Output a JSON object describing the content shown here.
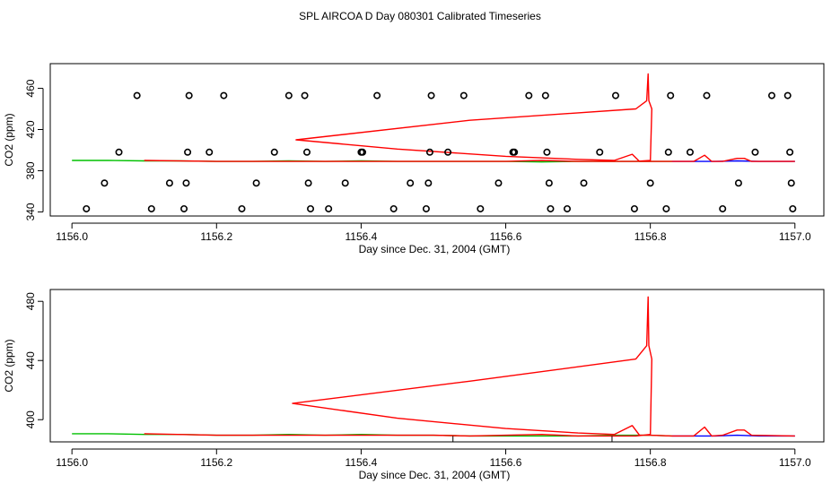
{
  "figure": {
    "title": "SPL AIRCOA D  Day 080301  Calibrated Timeseries"
  },
  "chart_data": [
    {
      "type": "line",
      "panel": "top",
      "xlabel": "Day since Dec. 31, 2004 (GMT)",
      "ylabel": "CO2 (ppm)",
      "xlim": [
        1155.97,
        1157.04
      ],
      "ylim": [
        336,
        484
      ],
      "xticks": [
        1156.0,
        1156.2,
        1156.4,
        1156.6,
        1156.8,
        1157.0
      ],
      "xtick_labels": [
        "1156.0",
        "1156.2",
        "1156.4",
        "1156.6",
        "1156.8",
        "1157.0"
      ],
      "yticks": [
        340,
        380,
        420,
        460
      ],
      "ytick_labels": [
        "340",
        "380",
        "420",
        "460"
      ],
      "series": [
        {
          "color": "#00c000",
          "x": [
            1156.0,
            1156.05,
            1156.1,
            1156.15,
            1156.2,
            1156.25,
            1156.3,
            1156.35,
            1156.4,
            1156.45,
            1156.5,
            1156.55,
            1156.6,
            1156.65,
            1156.7,
            1156.75,
            1156.8,
            1156.83
          ],
          "y": [
            390,
            390,
            389.5,
            389.5,
            389,
            389,
            389.5,
            389,
            389.5,
            389,
            389,
            389,
            389,
            388.5,
            389,
            389,
            389,
            389
          ]
        },
        {
          "color": "#0000ff",
          "x": [
            1156.83,
            1156.86,
            1156.89,
            1156.92,
            1156.95,
            1156.98,
            1157.0
          ],
          "y": [
            389,
            389,
            389,
            389.5,
            389,
            389,
            389
          ]
        },
        {
          "color": "#ff0000",
          "x": [
            1156.1,
            1156.2,
            1156.3,
            1156.4,
            1156.5,
            1156.55,
            1156.6,
            1156.65,
            1156.7,
            1156.76,
            1156.78,
            1156.8,
            1156.802,
            1156.798,
            1156.797,
            1156.795,
            1156.78,
            1156.55,
            1156.31,
            1156.45,
            1156.6,
            1156.7,
            1156.75,
            1156.775,
            1156.785,
            1156.8,
            1156.83,
            1156.86,
            1156.875,
            1156.885,
            1156.9,
            1156.92,
            1156.93,
            1156.94,
            1157.0
          ],
          "y": [
            390,
            389,
            389,
            389,
            389,
            389,
            389,
            390,
            389,
            389,
            389,
            390,
            440,
            448,
            474,
            448,
            440,
            429,
            410,
            401,
            394,
            391,
            390,
            396,
            389,
            389,
            389,
            389,
            395,
            389,
            389,
            392,
            392,
            389,
            389
          ]
        },
        {
          "color": "#000000",
          "marker": "circle",
          "x": [
            1156.02,
            1156.045,
            1156.065,
            1156.09,
            1156.11,
            1156.135,
            1156.155,
            1156.158,
            1156.16,
            1156.162,
            1156.19,
            1156.21,
            1156.235,
            1156.255,
            1156.28,
            1156.3,
            1156.322,
            1156.325,
            1156.327,
            1156.33,
            1156.355,
            1156.378,
            1156.4,
            1156.402,
            1156.422,
            1156.445,
            1156.468,
            1156.49,
            1156.493,
            1156.495,
            1156.497,
            1156.52,
            1156.542,
            1156.565,
            1156.59,
            1156.61,
            1156.612,
            1156.632,
            1156.655,
            1156.657,
            1156.66,
            1156.662,
            1156.685,
            1156.708,
            1156.73,
            1156.752,
            1156.778,
            1156.8,
            1156.822,
            1156.825,
            1156.828,
            1156.855,
            1156.878,
            1156.9,
            1156.922,
            1156.945,
            1156.968,
            1156.99,
            1156.993,
            1156.995,
            1156.997
          ],
          "y": [
            343,
            368,
            398,
            453,
            343,
            368,
            343,
            368,
            398,
            453,
            398,
            453,
            343,
            368,
            398,
            453,
            453,
            398,
            368,
            343,
            343,
            368,
            398,
            398,
            453,
            343,
            368,
            343,
            368,
            398,
            453,
            398,
            453,
            343,
            368,
            398,
            398,
            453,
            453,
            398,
            368,
            343,
            343,
            368,
            398,
            453,
            343,
            368,
            343,
            398,
            453,
            398,
            453,
            343,
            368,
            398,
            453,
            453,
            398,
            368,
            343
          ]
        }
      ]
    },
    {
      "type": "line",
      "panel": "bottom",
      "xlabel": "Day since Dec. 31, 2004 (GMT)",
      "ylabel": "CO2 (ppm)",
      "xlim": [
        1155.97,
        1157.04
      ],
      "ylim": [
        385,
        488
      ],
      "xticks": [
        1156.0,
        1156.2,
        1156.4,
        1156.6,
        1156.8,
        1157.0
      ],
      "xtick_labels": [
        "1156.0",
        "1156.2",
        "1156.4",
        "1156.6",
        "1156.8",
        "1157.0"
      ],
      "yticks": [
        400,
        440,
        480
      ],
      "ytick_labels": [
        "400",
        "440",
        "480"
      ],
      "series": [
        {
          "color": "#00c000",
          "x": [
            1156.0,
            1156.05,
            1156.1,
            1156.15,
            1156.2,
            1156.25,
            1156.3,
            1156.35,
            1156.4,
            1156.45,
            1156.5,
            1156.55,
            1156.6,
            1156.65,
            1156.7,
            1156.75,
            1156.8,
            1156.83
          ],
          "y": [
            390.5,
            390.5,
            390,
            390,
            389.5,
            389.5,
            390,
            389.5,
            390,
            389.5,
            389.5,
            389,
            389,
            389,
            389,
            389.5,
            389.5,
            389
          ]
        },
        {
          "color": "#0000ff",
          "x": [
            1156.83,
            1156.86,
            1156.89,
            1156.92,
            1156.95,
            1156.98,
            1157.0
          ],
          "y": [
            389,
            389,
            389,
            389.5,
            389,
            389,
            389
          ]
        },
        {
          "color": "#ff0000",
          "x": [
            1156.1,
            1156.2,
            1156.3,
            1156.4,
            1156.5,
            1156.55,
            1156.6,
            1156.65,
            1156.7,
            1156.76,
            1156.78,
            1156.8,
            1156.802,
            1156.798,
            1156.797,
            1156.795,
            1156.78,
            1156.55,
            1156.305,
            1156.45,
            1156.6,
            1156.7,
            1156.75,
            1156.775,
            1156.785,
            1156.8,
            1156.83,
            1156.86,
            1156.875,
            1156.885,
            1156.9,
            1156.92,
            1156.93,
            1156.94,
            1157.0
          ],
          "y": [
            390.5,
            389.5,
            389.5,
            389.5,
            389.5,
            389,
            389.5,
            390,
            389,
            389,
            389,
            390,
            441,
            450,
            483,
            450,
            441,
            426,
            411,
            401,
            394,
            391,
            390,
            396,
            389.5,
            389.5,
            389,
            389,
            395,
            389,
            389.5,
            393,
            393,
            389.5,
            389
          ]
        },
        {
          "color": "#000000",
          "marker": "vline",
          "x": [
            1156.527,
            1156.747
          ],
          "y": [
            389,
            389
          ]
        }
      ]
    }
  ]
}
